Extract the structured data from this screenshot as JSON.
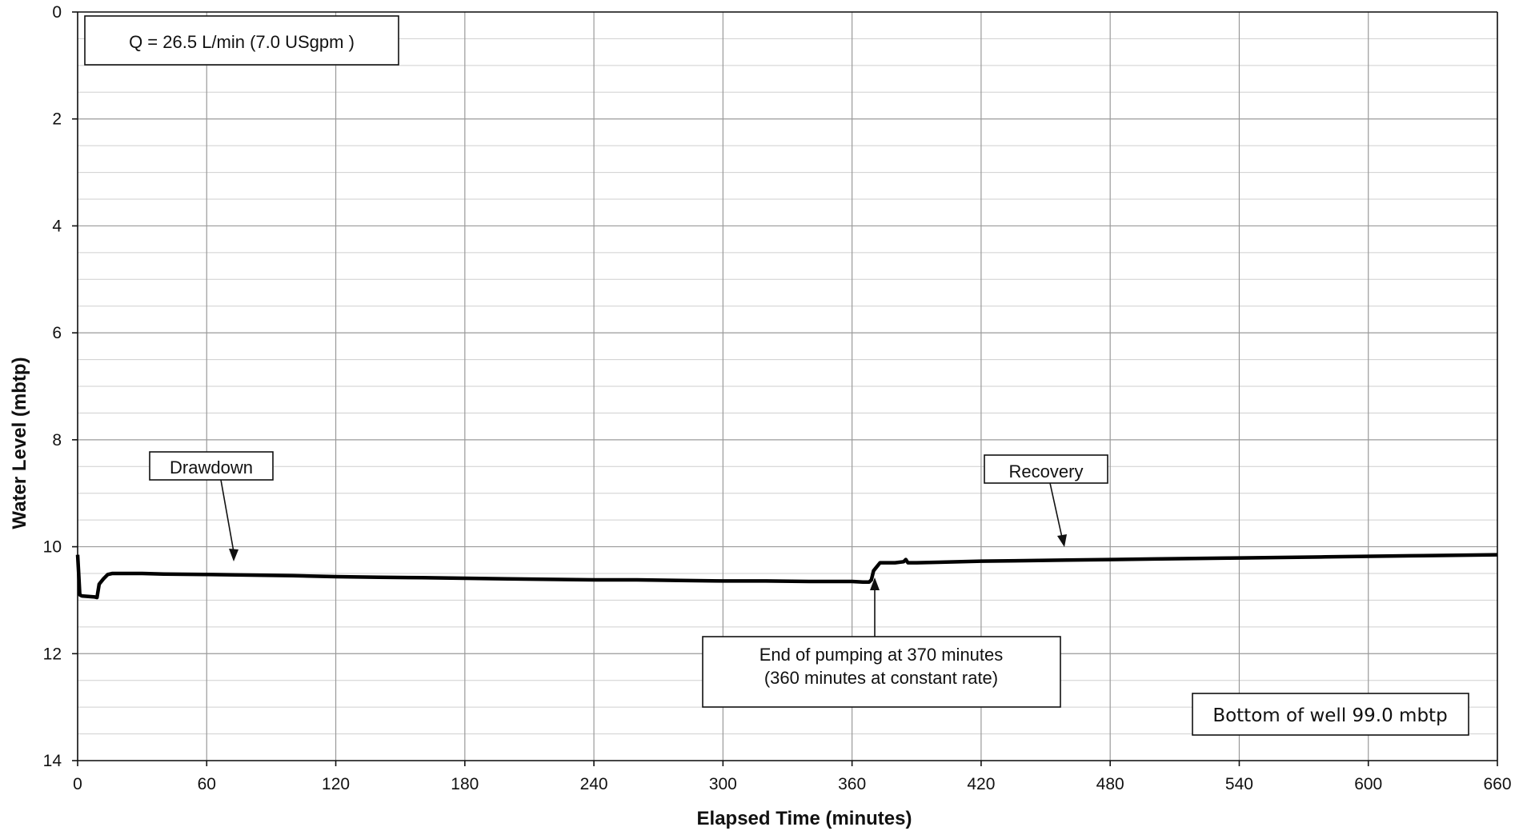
{
  "chart_data": {
    "type": "line",
    "title": "",
    "xlabel": "Elapsed Time (minutes)",
    "ylabel": "Water Level (mbtp)",
    "xlim": [
      0,
      660
    ],
    "ylim": [
      0,
      14
    ],
    "y_inverted": true,
    "grid": true,
    "x_ticks": [
      "0",
      "60",
      "120",
      "180",
      "240",
      "300",
      "360",
      "420",
      "480",
      "540",
      "600",
      "660"
    ],
    "y_ticks": [
      "0",
      "2",
      "4",
      "6",
      "8",
      "10",
      "12",
      "14"
    ],
    "series": [
      {
        "color": "#000000",
        "x": [
          0,
          0.5,
          1,
          2,
          5,
          8,
          9,
          10,
          12,
          14,
          16,
          20,
          30,
          40,
          60,
          80,
          100,
          120,
          140,
          160,
          180,
          200,
          220,
          240,
          260,
          280,
          300,
          320,
          340,
          360,
          365,
          368,
          369,
          370,
          371,
          373,
          376,
          380,
          384,
          385,
          386,
          390,
          400,
          420,
          440,
          460,
          480,
          500,
          540,
          580,
          620,
          660
        ],
        "y": [
          10.15,
          10.5,
          10.9,
          10.92,
          10.93,
          10.94,
          10.95,
          10.7,
          10.6,
          10.52,
          10.5,
          10.5,
          10.5,
          10.51,
          10.52,
          10.53,
          10.54,
          10.56,
          10.57,
          10.58,
          10.59,
          10.6,
          10.61,
          10.62,
          10.62,
          10.63,
          10.64,
          10.64,
          10.65,
          10.65,
          10.66,
          10.66,
          10.62,
          10.45,
          10.4,
          10.3,
          10.3,
          10.3,
          10.28,
          10.24,
          10.3,
          10.3,
          10.29,
          10.27,
          10.26,
          10.25,
          10.24,
          10.23,
          10.21,
          10.19,
          10.17,
          10.15
        ]
      }
    ],
    "annotations": {
      "flow_rate": "Q = 26.5 L/min (7.0 USgpm )",
      "drawdown": "Drawdown",
      "recovery": "Recovery",
      "end_pumping_line1": "End of pumping at 370 minutes",
      "end_pumping_line2": "(360 minutes at constant rate)",
      "bottom_of_well": "Bottom of well 99.0 mbtp"
    }
  }
}
